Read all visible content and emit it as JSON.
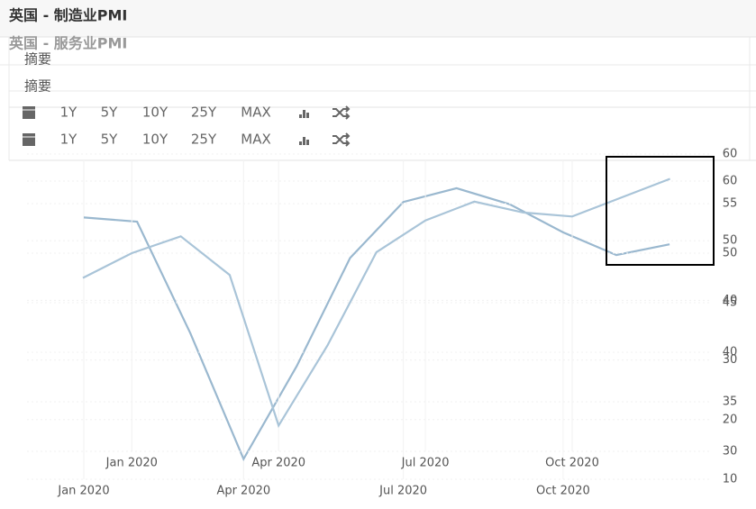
{
  "chart_data": [
    {
      "type": "line",
      "title": "英国 - 制造业PMI",
      "tab": "摘要",
      "ranges": [
        "1Y",
        "5Y",
        "10Y",
        "25Y",
        "MAX"
      ],
      "categories": [
        null,
        "Jan 2020",
        null,
        null,
        "Apr 2020",
        null,
        null,
        "Jul 2020",
        null,
        null,
        "Oct 2020",
        null,
        null
      ],
      "values": [
        47.5,
        50.0,
        51.7,
        47.8,
        32.6,
        40.7,
        50.1,
        53.3,
        55.2,
        54.1,
        53.7,
        55.6,
        57.5
      ],
      "color": "#a9c4d8",
      "ylim": [
        30,
        60
      ],
      "yticks": [
        30,
        35,
        40,
        45,
        50,
        55,
        60
      ],
      "grid": true
    },
    {
      "type": "line",
      "title": "英国 - 服务业PMI",
      "tab": "摘要",
      "ranges": [
        "1Y",
        "5Y",
        "10Y",
        "25Y",
        "MAX"
      ],
      "categories": [
        "Jan 2020",
        null,
        null,
        "Apr 2020",
        null,
        null,
        "Jul 2020",
        null,
        null,
        "Oct 2020",
        null,
        null
      ],
      "values": [
        53.9,
        53.2,
        34.5,
        13.4,
        29.0,
        47.1,
        56.5,
        58.8,
        56.1,
        51.4,
        47.6,
        49.4
      ],
      "color": "#9ab8cf",
      "ylim": [
        10,
        60
      ],
      "yticks": [
        10,
        20,
        30,
        40,
        50,
        60
      ],
      "grid": true
    }
  ]
}
